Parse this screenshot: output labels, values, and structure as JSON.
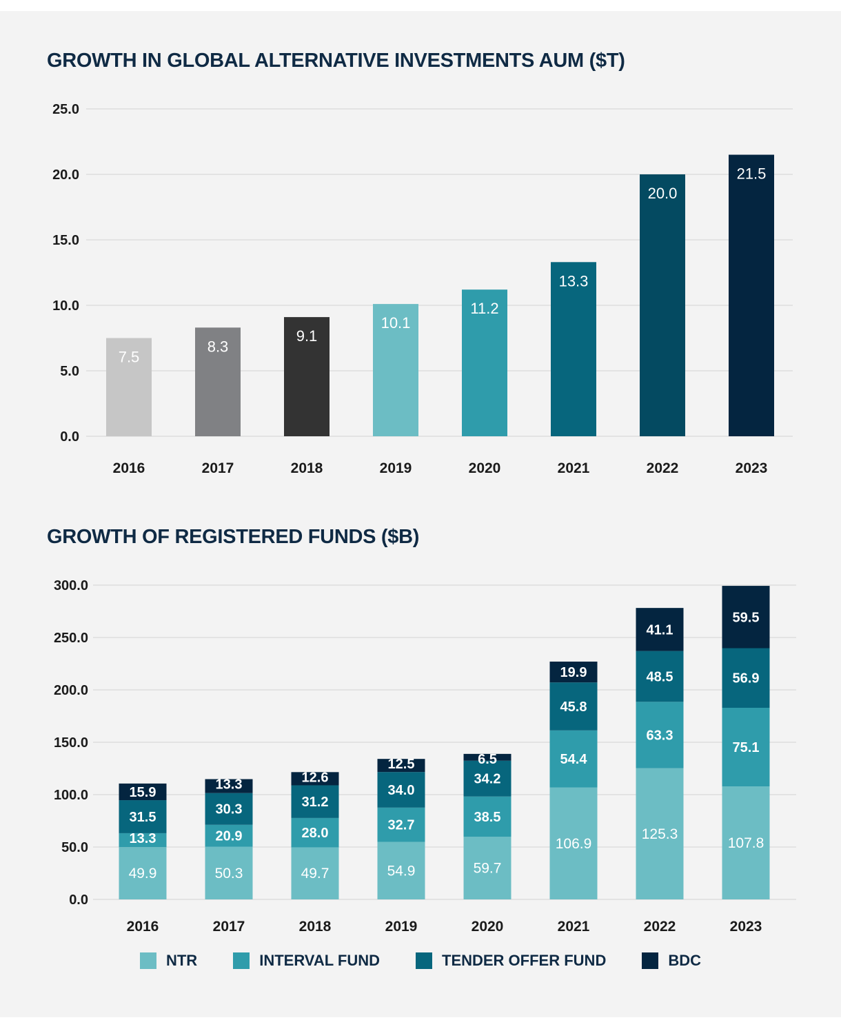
{
  "chart_data": [
    {
      "type": "bar",
      "title": "GROWTH IN GLOBAL ALTERNATIVE INVESTMENTS AUM ($T)",
      "categories": [
        "2016",
        "2017",
        "2018",
        "2019",
        "2020",
        "2021",
        "2022",
        "2023"
      ],
      "values": [
        7.5,
        8.3,
        9.1,
        10.1,
        11.2,
        13.3,
        20.0,
        21.5
      ],
      "value_labels": [
        "7.5",
        "8.3",
        "9.1",
        "10.1",
        "11.2",
        "13.3",
        "20.0",
        "21.5"
      ],
      "bar_colors": [
        "#c6c6c6",
        "#808184",
        "#333333",
        "#6cbdc4",
        "#2f9cab",
        "#07667d",
        "#044a61",
        "#042540"
      ],
      "ylim": [
        0,
        25
      ],
      "yticks": [
        0,
        5,
        10,
        15,
        20,
        25
      ],
      "ytick_labels": [
        "0.0",
        "5.0",
        "10.0",
        "15.0",
        "20.0",
        "25.0"
      ],
      "grid": true
    },
    {
      "type": "bar",
      "stacked": true,
      "title": "GROWTH OF REGISTERED FUNDS ($B)",
      "categories": [
        "2016",
        "2017",
        "2018",
        "2019",
        "2020",
        "2021",
        "2022",
        "2023"
      ],
      "series": [
        {
          "name": "NTR",
          "color": "#6cbdc4",
          "values": [
            49.9,
            50.3,
            49.7,
            54.9,
            59.7,
            106.9,
            125.3,
            107.8
          ],
          "labels": [
            "49.9",
            "50.3",
            "49.7",
            "54.9",
            "59.7",
            "106.9",
            "125.3",
            "107.8"
          ]
        },
        {
          "name": "INTERVAL FUND",
          "color": "#2f9cab",
          "values": [
            13.3,
            20.9,
            28.0,
            32.7,
            38.5,
            54.4,
            63.3,
            75.1
          ],
          "labels": [
            "13.3",
            "20.9",
            "28.0",
            "32.7",
            "38.5",
            "54.4",
            "63.3",
            "75.1"
          ]
        },
        {
          "name": "TENDER OFFER FUND",
          "color": "#07667d",
          "values": [
            31.5,
            30.3,
            31.2,
            34.0,
            34.2,
            45.8,
            48.5,
            56.9
          ],
          "labels": [
            "31.5",
            "30.3",
            "31.2",
            "34.0",
            "34.2",
            "45.8",
            "48.5",
            "56.9"
          ]
        },
        {
          "name": "BDC",
          "color": "#042540",
          "values": [
            15.9,
            13.3,
            12.6,
            12.5,
            6.5,
            19.9,
            41.1,
            59.5
          ],
          "labels": [
            "15.9",
            "13.3",
            "12.6",
            "12.5",
            "6.5",
            "19.9",
            "41.1",
            "59.5"
          ]
        }
      ],
      "ylim": [
        0,
        300
      ],
      "yticks": [
        0,
        50,
        100,
        150,
        200,
        250,
        300
      ],
      "ytick_labels": [
        "0.0",
        "50.0",
        "100.0",
        "150.0",
        "200.0",
        "250.0",
        "300.0"
      ],
      "grid": true,
      "legend": "bottom"
    }
  ]
}
